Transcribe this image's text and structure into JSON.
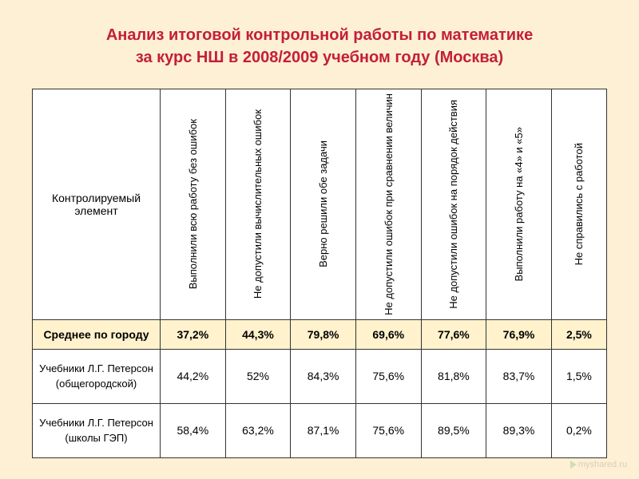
{
  "title_line1": "Анализ итоговой контрольной работы по математике",
  "title_line2": "за курс НШ в 2008/2009 учебном году (Москва)",
  "columns": {
    "c0": "Контролируемый элемент",
    "c1": "Выполнили всю работу без ошибок",
    "c2": "Не допустили вычислительных ошибок",
    "c3": "Верно решили обе задачи",
    "c4": "Не допустили ошибок при сравнении величин",
    "c5": "Не допустили ошибок на порядок действия",
    "c6": "Выполнили работу на «4» и «5»",
    "c7": "Не справились с работой"
  },
  "rows": {
    "avg": {
      "label": "Среднее по городу",
      "v1": "37,2%",
      "v2": "44,3%",
      "v3": "79,8%",
      "v4": "69,6%",
      "v5": "77,6%",
      "v6": "76,9%",
      "v7": "2,5%"
    },
    "r1": {
      "label_l1": "Учебники Л.Г. Петерсон",
      "label_l2": "(общегородской)",
      "v1": "44,2%",
      "v2": "52%",
      "v3": "84,3%",
      "v4": "75,6%",
      "v5": "81,8%",
      "v6": "83,7%",
      "v7": "1,5%"
    },
    "r2": {
      "label_l1": "Учебники Л.Г. Петерсон",
      "label_l2": "(школы ГЭП)",
      "v1": "58,4%",
      "v2": "63,2%",
      "v3": "87,1%",
      "v4": "75,6%",
      "v5": "89,5%",
      "v6": "89,3%",
      "v7": "0,2%"
    }
  },
  "watermark": "myshared.ru",
  "colors": {
    "background": "#fdf0d5",
    "title_color": "#c41e3a",
    "highlight_row": "#fff2cc",
    "border": "#333333",
    "cell_bg": "#ffffff"
  },
  "table_style": {
    "type": "table",
    "header_orientation": "vertical",
    "font_family": "Arial",
    "title_fontsize": 20,
    "header_fontsize": 13,
    "cell_fontsize": 14,
    "border_width": 1.5
  }
}
